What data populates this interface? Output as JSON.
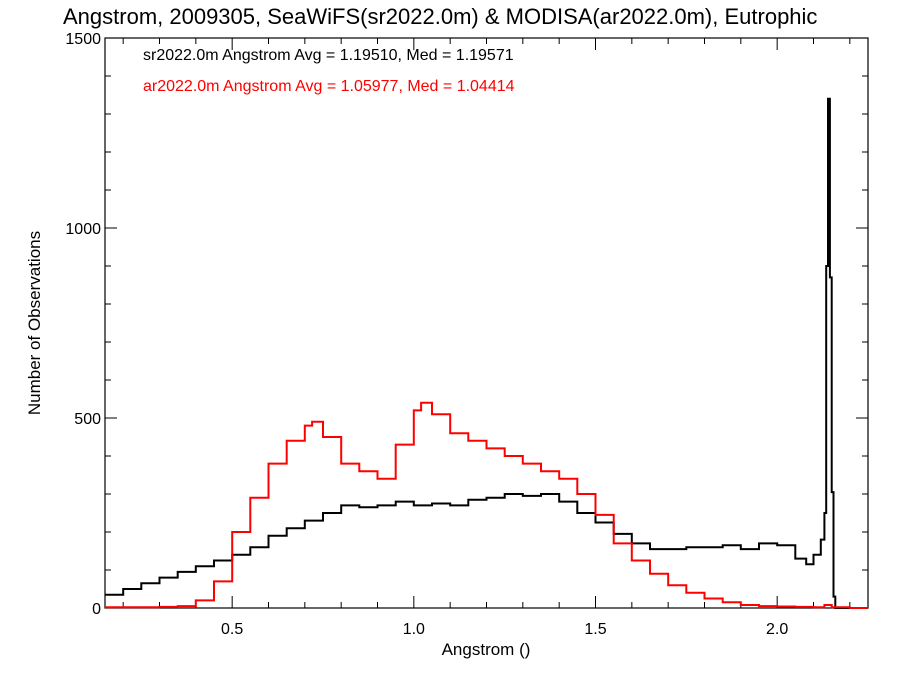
{
  "chart_data": {
    "type": "line",
    "title": "Angstrom, 2009305, SeaWiFS(sr2022.0m) & MODISA(ar2022.0m), Eutrophic",
    "xlabel": "Angstrom ()",
    "ylabel": "Number of Observations",
    "xlim": [
      0.15,
      2.25
    ],
    "ylim": [
      0,
      1500
    ],
    "x_ticks": [
      0.5,
      1.0,
      1.5,
      2.0
    ],
    "x_tick_labels": [
      "0.5",
      "1.0",
      "1.5",
      "2.0"
    ],
    "y_ticks": [
      0,
      500,
      1000,
      1500
    ],
    "y_tick_labels": [
      "0",
      "500",
      "1000",
      "1500"
    ],
    "grid": false,
    "legend_placement": "top-left",
    "annotations": [
      "sr2022.0m Angstrom Avg = 1.19510, Med = 1.19571",
      "ar2022.0m Angstrom Avg = 1.05977, Med = 1.04414"
    ],
    "series": [
      {
        "color": "#000000",
        "x": [
          0.15,
          0.2,
          0.25,
          0.3,
          0.35,
          0.4,
          0.45,
          0.5,
          0.55,
          0.6,
          0.65,
          0.7,
          0.75,
          0.8,
          0.85,
          0.9,
          0.95,
          1.0,
          1.05,
          1.1,
          1.15,
          1.2,
          1.25,
          1.3,
          1.35,
          1.4,
          1.45,
          1.5,
          1.55,
          1.6,
          1.65,
          1.7,
          1.75,
          1.8,
          1.85,
          1.9,
          1.95,
          2.0,
          2.05,
          2.08,
          2.1,
          2.12,
          2.13,
          2.135,
          2.14,
          2.145,
          2.15,
          2.155,
          2.16,
          2.2,
          2.25
        ],
        "y": [
          35,
          50,
          65,
          80,
          95,
          110,
          125,
          140,
          160,
          190,
          210,
          230,
          250,
          270,
          265,
          270,
          280,
          270,
          275,
          270,
          285,
          290,
          300,
          295,
          300,
          280,
          250,
          225,
          195,
          170,
          155,
          155,
          160,
          160,
          165,
          155,
          170,
          165,
          130,
          115,
          140,
          180,
          250,
          900,
          1340,
          870,
          305,
          30,
          0,
          0,
          0
        ]
      },
      {
        "color": "#ff0000",
        "x": [
          0.15,
          0.2,
          0.25,
          0.3,
          0.35,
          0.4,
          0.45,
          0.5,
          0.55,
          0.6,
          0.65,
          0.7,
          0.72,
          0.75,
          0.8,
          0.85,
          0.9,
          0.95,
          1.0,
          1.02,
          1.05,
          1.1,
          1.15,
          1.2,
          1.25,
          1.3,
          1.35,
          1.4,
          1.45,
          1.5,
          1.55,
          1.6,
          1.65,
          1.7,
          1.75,
          1.8,
          1.85,
          1.9,
          1.95,
          2.0,
          2.05,
          2.1,
          2.13,
          2.15,
          2.2,
          2.25
        ],
        "y": [
          2,
          2,
          2,
          3,
          5,
          20,
          70,
          200,
          290,
          380,
          440,
          480,
          490,
          450,
          380,
          360,
          340,
          430,
          520,
          540,
          510,
          460,
          440,
          420,
          400,
          380,
          360,
          340,
          300,
          245,
          170,
          125,
          90,
          60,
          40,
          25,
          15,
          8,
          5,
          4,
          3,
          2,
          8,
          2,
          0,
          0
        ]
      }
    ]
  }
}
